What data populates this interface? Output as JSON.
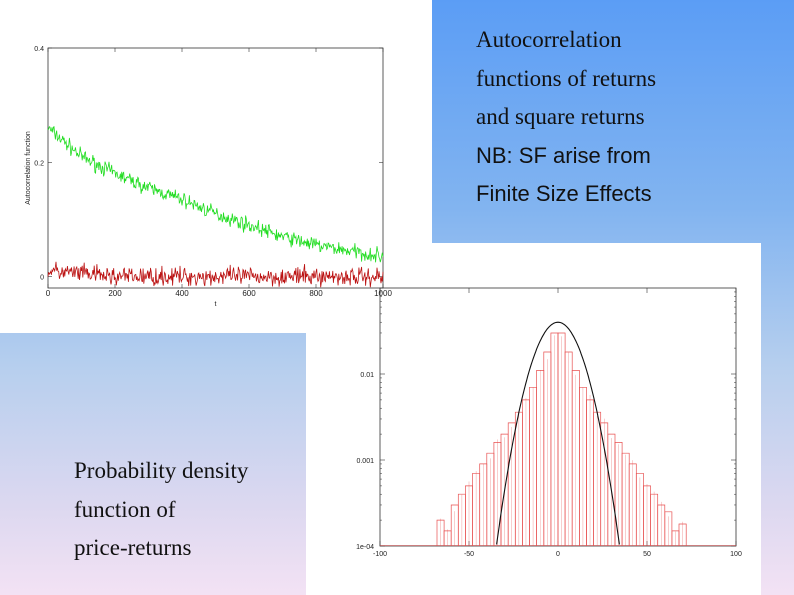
{
  "captions": {
    "top": [
      "Autocorrelation",
      "functions of returns",
      "and square returns"
    ],
    "top_note": [
      "NB: SF arise from",
      "Finite Size Effects"
    ],
    "bottom": [
      "Probability density",
      "function of",
      "price-returns"
    ]
  },
  "colors": {
    "squared_returns": "#22dd22",
    "returns": "#bb1111",
    "histogram": "#e85050",
    "gaussian": "#111111"
  },
  "chart_data": [
    {
      "type": "line",
      "xlabel": "t",
      "ylabel": "Autocorrelation function",
      "xlim": [
        0,
        1000
      ],
      "ylim": [
        -0.02,
        0.4
      ],
      "x_ticks": [
        "0",
        "200",
        "400",
        "600",
        "800",
        "1000"
      ],
      "y_ticks": [
        "0",
        "0.2",
        "0.4"
      ],
      "series": [
        {
          "color": "#22dd22",
          "x": [
            0,
            100,
            200,
            300,
            400,
            500,
            600,
            700,
            800,
            900,
            1000
          ],
          "values": [
            0.26,
            0.21,
            0.18,
            0.155,
            0.135,
            0.11,
            0.09,
            0.07,
            0.055,
            0.045,
            0.035
          ]
        },
        {
          "color": "#bb1111",
          "x": [
            0,
            100,
            200,
            300,
            400,
            500,
            600,
            700,
            800,
            900,
            1000
          ],
          "values": [
            0.01,
            0.005,
            0.0,
            0.0,
            0.0,
            0.0,
            0.0,
            0.0,
            0.0,
            0.0,
            0.0
          ]
        }
      ],
      "grid": false
    },
    {
      "type": "bar",
      "yscale": "log",
      "xlim": [
        -100,
        100
      ],
      "ylim": [
        0.0001,
        0.1
      ],
      "x_ticks": [
        "-100",
        "-50",
        "0",
        "50",
        "100"
      ],
      "y_ticks": [
        "1e-04",
        "0.001",
        "0.01"
      ],
      "x": [
        -66,
        -62,
        -58,
        -54,
        -50,
        -46,
        -42,
        -38,
        -34,
        -30,
        -26,
        -22,
        -18,
        -14,
        -10,
        -6,
        -2,
        2,
        6,
        10,
        14,
        18,
        22,
        26,
        30,
        34,
        38,
        42,
        46,
        50,
        54,
        58,
        62,
        66,
        70
      ],
      "values": [
        0.0002,
        0.00015,
        0.0003,
        0.0004,
        0.0005,
        0.0007,
        0.0009,
        0.0012,
        0.0016,
        0.002,
        0.0027,
        0.0036,
        0.005,
        0.007,
        0.011,
        0.018,
        0.03,
        0.03,
        0.018,
        0.011,
        0.007,
        0.005,
        0.0036,
        0.0027,
        0.002,
        0.0016,
        0.0012,
        0.0009,
        0.0007,
        0.0005,
        0.0004,
        0.0003,
        0.00025,
        0.00015,
        0.00018
      ],
      "gaussian": {
        "mean": 0,
        "sigma": 10,
        "peak": 0.04
      },
      "grid": false
    }
  ]
}
